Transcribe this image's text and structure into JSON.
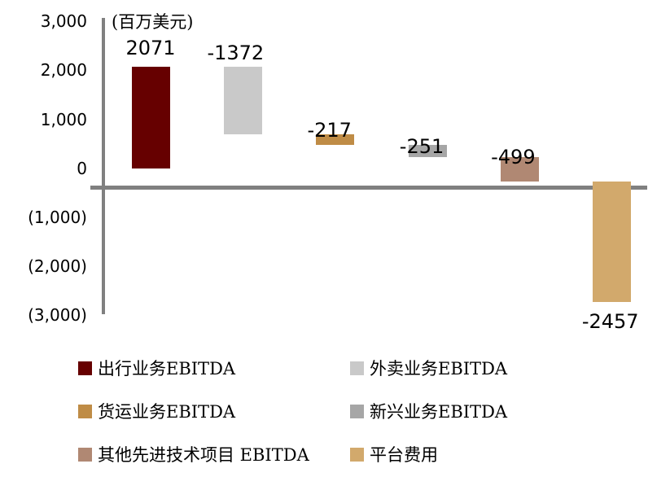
{
  "chart_data": {
    "type": "bar",
    "subtype": "waterfall",
    "unit_label": "(百万美元)",
    "categories": [
      "出行业务EBITDA",
      "外卖业务EBITDA",
      "货运业务EBITDA",
      "新兴业务EBITDA",
      "其他先进技术项目 EBITDA",
      "平台费用"
    ],
    "values": [
      2071,
      -1372,
      -217,
      -251,
      -499,
      -2457
    ],
    "data_labels": [
      "2071",
      "-1372",
      "-217",
      "-251",
      "-499",
      "-2457"
    ],
    "cumulative_start": [
      0,
      2071,
      699,
      482,
      231,
      -268
    ],
    "cumulative_end": [
      2071,
      699,
      482,
      231,
      -268,
      -2725
    ],
    "colors": [
      "#660000",
      "#C9C9C9",
      "#BF8C46",
      "#A6A6A6",
      "#B08873",
      "#D2A96C"
    ],
    "y_axis": {
      "tick_labels": [
        "3,000",
        "2,000",
        "1,000",
        "0",
        "(1,000)",
        "(2,000)",
        "(3,000)"
      ],
      "tick_values": [
        3000,
        2000,
        1000,
        0,
        -1000,
        -2000,
        -3000
      ],
      "ylim": [
        -3000,
        3000
      ]
    },
    "axis_color": "#808080",
    "grid": false,
    "legend": {
      "position": "bottom",
      "columns": 2,
      "items": [
        {
          "label": "出行业务EBITDA",
          "color": "#660000"
        },
        {
          "label": "外卖业务EBITDA",
          "color": "#C9C9C9"
        },
        {
          "label": "货运业务EBITDA",
          "color": "#BF8C46"
        },
        {
          "label": "新兴业务EBITDA",
          "color": "#A6A6A6"
        },
        {
          "label": "其他先进技术项目 EBITDA",
          "color": "#B08873"
        },
        {
          "label": "平台费用",
          "color": "#D2A96C"
        }
      ]
    }
  }
}
